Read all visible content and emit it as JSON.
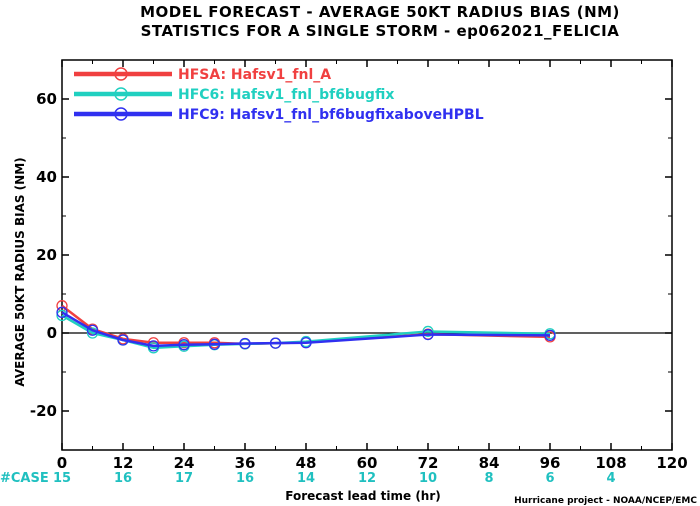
{
  "chart_data": {
    "type": "line",
    "title": "MODEL FORECAST - AVERAGE 50KT RADIUS BIAS (NM)",
    "subtitle": "STATISTICS FOR A SINGLE STORM - ep062021_FELICIA",
    "xlabel": "Forecast lead time (hr)",
    "ylabel": "AVERAGE 50KT RADIUS BIAS (NM)",
    "xlim": [
      0,
      120
    ],
    "ylim": [
      -30,
      70
    ],
    "x_ticks": [
      "0",
      "12",
      "24",
      "36",
      "48",
      "60",
      "72",
      "84",
      "96",
      "108",
      "120"
    ],
    "y_ticks": [
      "-20",
      "0",
      "20",
      "40",
      "60"
    ],
    "x": [
      0,
      6,
      12,
      18,
      24,
      30,
      36,
      42,
      48,
      72,
      96
    ],
    "series": [
      {
        "name": "HFSA: Hafsv1_fnl_A",
        "color": "#f04040",
        "values": [
          7.0,
          1.0,
          -1.5,
          -2.5,
          -2.5,
          -2.5,
          -2.8,
          -2.6,
          -2.4,
          -0.3,
          -1.0
        ]
      },
      {
        "name": "HFC6: Hafsv1_fnl_bf6bugfix",
        "color": "#20d0c0",
        "values": [
          4.5,
          0.0,
          -1.8,
          -3.8,
          -3.4,
          -3.0,
          -2.8,
          -2.6,
          -2.2,
          0.4,
          -0.2
        ]
      },
      {
        "name": "HFC9: Hafsv1_fnl_bf6bugfixaboveHPBL",
        "color": "#3030f0",
        "values": [
          5.3,
          0.7,
          -1.8,
          -3.3,
          -3.0,
          -2.9,
          -2.7,
          -2.6,
          -2.5,
          -0.4,
          -0.6
        ]
      }
    ],
    "cases_label": "#CASE",
    "cases": [
      {
        "x": 0,
        "n": "15"
      },
      {
        "x": 12,
        "n": "16"
      },
      {
        "x": 24,
        "n": "17"
      },
      {
        "x": 36,
        "n": "16"
      },
      {
        "x": 48,
        "n": "14"
      },
      {
        "x": 60,
        "n": "12"
      },
      {
        "x": 72,
        "n": "10"
      },
      {
        "x": 84,
        "n": "8"
      },
      {
        "x": 96,
        "n": "6"
      },
      {
        "x": 108,
        "n": "4"
      }
    ],
    "zero_line": true,
    "legend_position": "top-left",
    "credit": "Hurricane project - NOAA/NCEP/EMC"
  }
}
